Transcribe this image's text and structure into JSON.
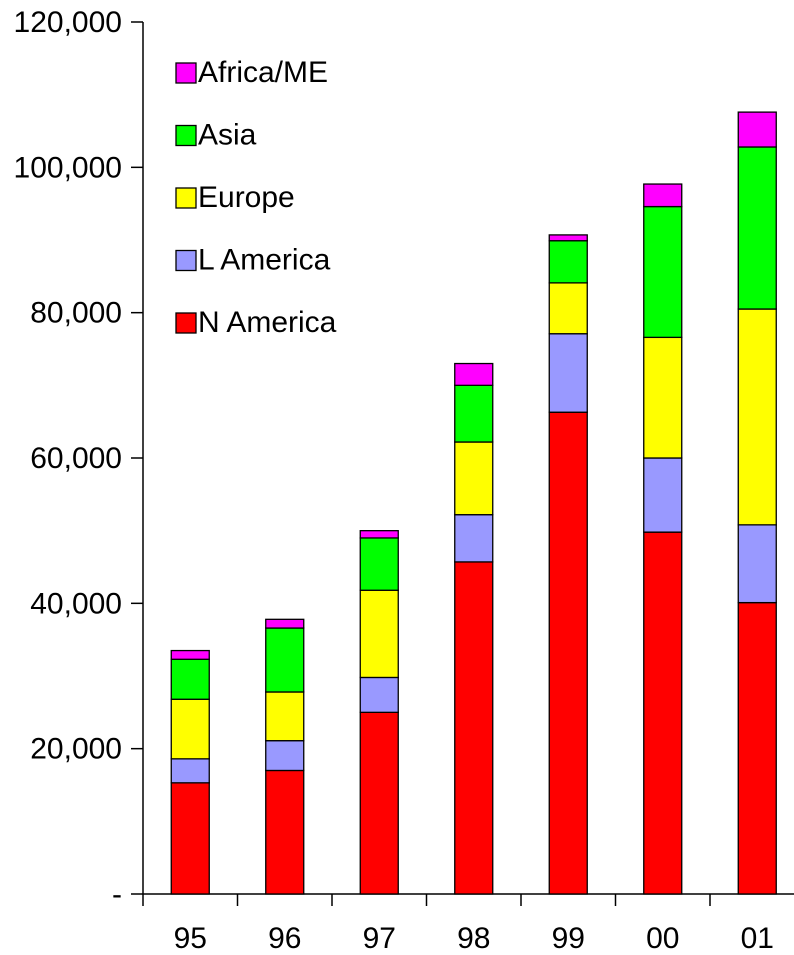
{
  "chart_data": {
    "type": "bar",
    "stacked": true,
    "title": "",
    "xlabel": "",
    "ylabel": "",
    "categories": [
      "95",
      "96",
      "97",
      "98",
      "99",
      "00",
      "01"
    ],
    "ylim": [
      0,
      120000
    ],
    "yticks": [
      0,
      20000,
      40000,
      60000,
      80000,
      100000,
      120000
    ],
    "ytick_labels": [
      "-",
      "20,000",
      "40,000",
      "60,000",
      "80,000",
      "100,000",
      "120,000"
    ],
    "grid": false,
    "legend_position": "top-left",
    "series": [
      {
        "name": "N America",
        "color": "#ff0000",
        "values": [
          15300,
          17000,
          25000,
          45700,
          66300,
          49800,
          40100
        ]
      },
      {
        "name": "L America",
        "color": "#9999ff",
        "values": [
          3300,
          4100,
          4800,
          6500,
          10800,
          10200,
          10700
        ]
      },
      {
        "name": "Europe",
        "color": "#ffff00",
        "values": [
          8200,
          6700,
          12000,
          10000,
          7000,
          16600,
          29700
        ]
      },
      {
        "name": "Asia",
        "color": "#00ff00",
        "values": [
          5500,
          8800,
          7200,
          7800,
          5800,
          18000,
          22300
        ]
      },
      {
        "name": "Africa/ME",
        "color": "#ff00ff",
        "values": [
          1200,
          1200,
          1000,
          3000,
          800,
          3100,
          4800
        ]
      }
    ]
  }
}
